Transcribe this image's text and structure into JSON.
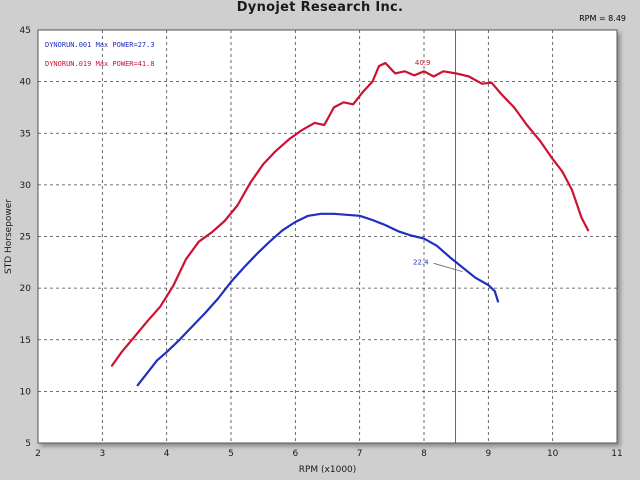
{
  "title": "Dynojet Research Inc.",
  "rpm_readout": "RPM = 8.49",
  "chart_data": {
    "type": "line",
    "xlabel": "RPM (x1000)",
    "ylabel": "STD Horsepower",
    "xlim": [
      2,
      11
    ],
    "ylim": [
      5,
      45
    ],
    "xticks": [
      2,
      3,
      4,
      5,
      6,
      7,
      8,
      9,
      10,
      11
    ],
    "yticks": [
      5,
      10,
      15,
      20,
      25,
      30,
      35,
      40,
      45
    ],
    "grid": true,
    "cursor_rpm": 8.49,
    "legend": [
      {
        "text": "DYNORUN.001  Max POWER=27.3",
        "color": "#1f2fbf"
      },
      {
        "text": "DYNORUN.019  Max POWER=41.8",
        "color": "#cc1133"
      }
    ],
    "series": [
      {
        "color": "#1f2fbf",
        "x": [
          3.55,
          3.7,
          3.85,
          4.0,
          4.2,
          4.4,
          4.6,
          4.8,
          5.0,
          5.2,
          5.4,
          5.6,
          5.8,
          6.0,
          6.2,
          6.4,
          6.6,
          6.8,
          7.0,
          7.2,
          7.4,
          7.6,
          7.8,
          8.0,
          8.2,
          8.4,
          8.6,
          8.8,
          9.0,
          9.1,
          9.15
        ],
        "y": [
          10.6,
          11.8,
          13.0,
          13.8,
          15.0,
          16.3,
          17.6,
          19.0,
          20.6,
          22.0,
          23.3,
          24.5,
          25.6,
          26.4,
          27.0,
          27.2,
          27.2,
          27.1,
          27.0,
          26.6,
          26.1,
          25.5,
          25.1,
          24.8,
          24.1,
          23.0,
          22.0,
          21.0,
          20.3,
          19.7,
          18.7
        ]
      },
      {
        "color": "#cc1133",
        "x": [
          3.15,
          3.3,
          3.5,
          3.7,
          3.9,
          4.1,
          4.3,
          4.5,
          4.7,
          4.9,
          5.1,
          5.3,
          5.5,
          5.7,
          5.9,
          6.1,
          6.3,
          6.45,
          6.6,
          6.75,
          6.9,
          7.05,
          7.2,
          7.3,
          7.4,
          7.55,
          7.7,
          7.85,
          8.0,
          8.15,
          8.3,
          8.5,
          8.7,
          8.9,
          9.05,
          9.2,
          9.4,
          9.6,
          9.8,
          10.0,
          10.15,
          10.3,
          10.45,
          10.55
        ],
        "y": [
          12.5,
          13.8,
          15.3,
          16.8,
          18.2,
          20.2,
          22.8,
          24.5,
          25.4,
          26.5,
          28.0,
          30.2,
          32.0,
          33.3,
          34.4,
          35.3,
          36.0,
          35.8,
          37.5,
          38.0,
          37.8,
          39.0,
          40.0,
          41.5,
          41.8,
          40.8,
          41.0,
          40.6,
          41.0,
          40.5,
          41.0,
          40.8,
          40.5,
          39.8,
          39.9,
          38.8,
          37.5,
          35.8,
          34.3,
          32.5,
          31.3,
          29.5,
          26.8,
          25.6
        ]
      }
    ],
    "annotations": [
      {
        "text": "40.9",
        "x": 7.98,
        "y": 41.8,
        "color": "#cc1133"
      },
      {
        "text": "22.4",
        "x": 7.95,
        "y": 22.5,
        "color": "#1f2fbf"
      }
    ]
  }
}
